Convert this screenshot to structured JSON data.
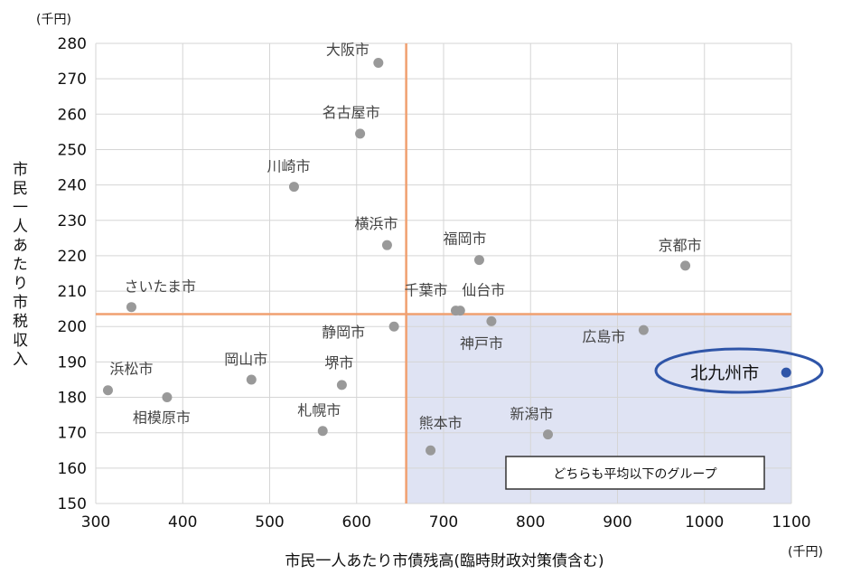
{
  "chart_data": {
    "type": "scatter",
    "title": "",
    "xlabel": "市民一人あたり市債残高(臨時財政対策債含む)",
    "ylabel": "市民一人あたり市税収入",
    "x_unit": "(千円)",
    "y_unit": "(千円)",
    "xlim": [
      300,
      1100
    ],
    "ylim": [
      150,
      280
    ],
    "x_ticks": [
      300,
      400,
      500,
      600,
      700,
      800,
      900,
      1000,
      1100
    ],
    "y_ticks": [
      150,
      160,
      170,
      180,
      190,
      200,
      210,
      220,
      230,
      240,
      250,
      260,
      270,
      280
    ],
    "grid": true,
    "average_lines": {
      "x": 657,
      "y": 203.5,
      "color": "#f0a070"
    },
    "below_average_region": {
      "label": "どちらも平均以下のグループ",
      "color": "#dfe3f3"
    },
    "colors": {
      "point": "#999999",
      "highlight": "#2f55a8",
      "grid": "#d5d5d5"
    },
    "points": [
      {
        "label": "大阪市",
        "x": 625,
        "y": 274.5
      },
      {
        "label": "名古屋市",
        "x": 604,
        "y": 254.5
      },
      {
        "label": "川崎市",
        "x": 528,
        "y": 239.5
      },
      {
        "label": "横浜市",
        "x": 635,
        "y": 223
      },
      {
        "label": "福岡市",
        "x": 741,
        "y": 218.8
      },
      {
        "label": "京都市",
        "x": 978,
        "y": 217.2
      },
      {
        "label": "さいたま市",
        "x": 341,
        "y": 205.5
      },
      {
        "label": "千葉市",
        "x": 714,
        "y": 204.5
      },
      {
        "label": "仙台市",
        "x": 719,
        "y": 204.5
      },
      {
        "label": "静岡市",
        "x": 643,
        "y": 200
      },
      {
        "label": "神戸市",
        "x": 755,
        "y": 201.5
      },
      {
        "label": "広島市",
        "x": 930,
        "y": 199
      },
      {
        "label": "浜松市",
        "x": 314,
        "y": 182
      },
      {
        "label": "岡山市",
        "x": 479,
        "y": 185
      },
      {
        "label": "堺市",
        "x": 583,
        "y": 183.5
      },
      {
        "label": "相模原市",
        "x": 382,
        "y": 180
      },
      {
        "label": "札幌市",
        "x": 561,
        "y": 170.5
      },
      {
        "label": "新潟市",
        "x": 820,
        "y": 169.5
      },
      {
        "label": "熊本市",
        "x": 685,
        "y": 165
      },
      {
        "label": "北九州市",
        "x": 1094,
        "y": 187,
        "highlight": true
      }
    ]
  }
}
